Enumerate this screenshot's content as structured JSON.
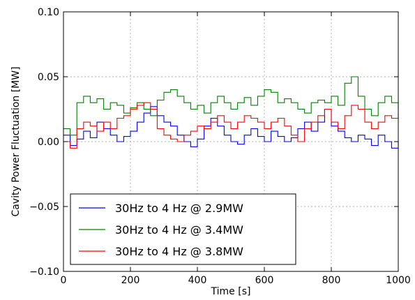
{
  "chart_data": {
    "type": "line",
    "title": "",
    "xlabel": "Time [s]",
    "ylabel": "Cavity Power Fluctuation [MW]",
    "xlim": [
      0,
      1000
    ],
    "ylim": [
      -0.1,
      0.1
    ],
    "x_ticks": [
      "0",
      "200",
      "400",
      "600",
      "800",
      "1000"
    ],
    "y_ticks": [
      "−0.10",
      "−0.05",
      "0.00",
      "0.05",
      "0.10"
    ],
    "grid": true,
    "legend_position": "lower-left",
    "step_drawstyle": true,
    "series": [
      {
        "name": "30Hz to 4 Hz @ 2.9MW",
        "color": "#0000ff",
        "x": [
          0,
          20,
          40,
          60,
          80,
          100,
          120,
          140,
          160,
          180,
          200,
          220,
          240,
          260,
          280,
          300,
          320,
          340,
          360,
          380,
          400,
          420,
          440,
          460,
          480,
          500,
          520,
          540,
          560,
          580,
          600,
          620,
          640,
          660,
          680,
          700,
          720,
          740,
          760,
          780,
          800,
          820,
          840,
          860,
          880,
          900,
          920,
          940,
          960,
          980,
          1000
        ],
        "y": [
          0.005,
          -0.003,
          0.002,
          0.008,
          0.003,
          0.015,
          0.01,
          0.005,
          0.0,
          0.004,
          0.008,
          0.015,
          0.022,
          0.027,
          0.02,
          0.015,
          0.012,
          0.005,
          0.0,
          -0.004,
          0.002,
          0.012,
          0.018,
          0.012,
          0.005,
          0.0,
          -0.002,
          0.005,
          0.01,
          0.004,
          0.0,
          0.008,
          0.004,
          0.0,
          0.003,
          0.01,
          0.015,
          0.008,
          0.015,
          0.025,
          0.012,
          0.008,
          0.003,
          0.0,
          0.005,
          0.002,
          -0.003,
          0.005,
          0.0,
          -0.005,
          0.0
        ]
      },
      {
        "name": "30Hz to 4 Hz @ 3.4MW",
        "color": "#008000",
        "x": [
          0,
          20,
          40,
          60,
          80,
          100,
          120,
          140,
          160,
          180,
          200,
          220,
          240,
          260,
          280,
          300,
          320,
          340,
          360,
          380,
          400,
          420,
          440,
          460,
          480,
          500,
          520,
          540,
          560,
          580,
          600,
          620,
          640,
          660,
          680,
          700,
          720,
          740,
          760,
          780,
          800,
          820,
          840,
          860,
          880,
          900,
          920,
          940,
          960,
          980,
          1000
        ],
        "y": [
          0.01,
          0.005,
          0.03,
          0.035,
          0.03,
          0.033,
          0.025,
          0.03,
          0.028,
          0.022,
          0.026,
          0.03,
          0.025,
          0.02,
          0.032,
          0.038,
          0.04,
          0.035,
          0.03,
          0.025,
          0.028,
          0.022,
          0.03,
          0.035,
          0.03,
          0.025,
          0.03,
          0.034,
          0.028,
          0.035,
          0.04,
          0.038,
          0.03,
          0.033,
          0.03,
          0.025,
          0.022,
          0.03,
          0.032,
          0.03,
          0.035,
          0.028,
          0.045,
          0.05,
          0.035,
          0.025,
          0.02,
          0.03,
          0.035,
          0.03,
          0.025
        ]
      },
      {
        "name": "30Hz to 4 Hz @ 3.8MW",
        "color": "#ff0000",
        "x": [
          0,
          20,
          40,
          60,
          80,
          100,
          120,
          140,
          160,
          180,
          200,
          220,
          240,
          260,
          280,
          300,
          320,
          340,
          360,
          380,
          400,
          420,
          440,
          460,
          480,
          500,
          520,
          540,
          560,
          580,
          600,
          620,
          640,
          660,
          680,
          700,
          720,
          740,
          760,
          780,
          800,
          820,
          840,
          860,
          880,
          900,
          920,
          940,
          960,
          980,
          1000
        ],
        "y": [
          0.0,
          -0.005,
          0.01,
          0.015,
          0.012,
          0.008,
          0.015,
          0.01,
          0.018,
          0.02,
          0.025,
          0.028,
          0.03,
          0.025,
          0.01,
          0.005,
          0.002,
          0.0,
          0.005,
          0.008,
          0.012,
          0.01,
          0.015,
          0.02,
          0.015,
          0.01,
          0.015,
          0.02,
          0.018,
          0.015,
          0.01,
          0.015,
          0.018,
          0.012,
          0.005,
          0.0,
          0.01,
          0.015,
          0.02,
          0.025,
          0.015,
          0.01,
          0.02,
          0.028,
          0.025,
          0.015,
          0.01,
          0.015,
          0.02,
          0.018,
          0.022
        ]
      }
    ]
  }
}
